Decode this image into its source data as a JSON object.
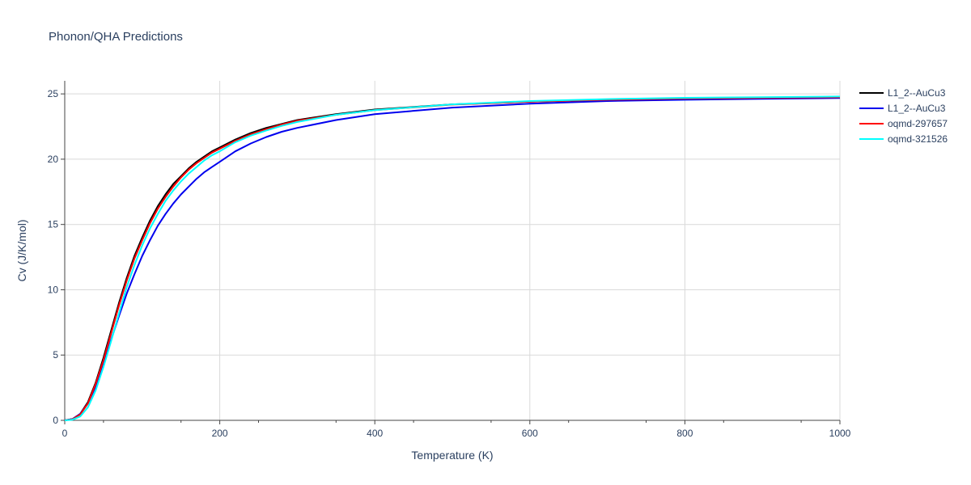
{
  "chart_data": {
    "type": "line",
    "title": "Phonon/QHA Predictions",
    "xlabel": "Temperature (K)",
    "ylabel": "Cv (J/K/mol)",
    "xlim": [
      0,
      1000
    ],
    "ylim": [
      0,
      26
    ],
    "x_ticks": [
      "0",
      "200",
      "400",
      "600",
      "800",
      "1000"
    ],
    "y_ticks": [
      "0",
      "5",
      "10",
      "15",
      "20",
      "25"
    ],
    "grid": true,
    "legend_position": "right",
    "series": [
      {
        "name": "L1_2--AuCu3",
        "color": "#000000",
        "x": [
          0,
          10,
          20,
          30,
          40,
          50,
          60,
          70,
          80,
          90,
          100,
          110,
          120,
          130,
          140,
          150,
          160,
          170,
          180,
          190,
          200,
          220,
          240,
          260,
          280,
          300,
          350,
          400,
          500,
          600,
          700,
          800,
          900,
          1000
        ],
        "y": [
          0,
          0.1,
          0.5,
          1.4,
          2.9,
          4.8,
          6.9,
          9.0,
          10.9,
          12.6,
          14.0,
          15.3,
          16.4,
          17.3,
          18.1,
          18.7,
          19.3,
          19.8,
          20.2,
          20.6,
          20.9,
          21.5,
          22.0,
          22.4,
          22.7,
          23.0,
          23.45,
          23.8,
          24.2,
          24.4,
          24.55,
          24.65,
          24.7,
          24.75
        ]
      },
      {
        "name": "L1_2--AuCu3",
        "color": "#0000ee",
        "x": [
          0,
          10,
          20,
          30,
          40,
          50,
          60,
          70,
          80,
          90,
          100,
          110,
          120,
          130,
          140,
          150,
          160,
          170,
          180,
          190,
          200,
          220,
          240,
          260,
          280,
          300,
          350,
          400,
          500,
          600,
          700,
          800,
          900,
          1000
        ],
        "y": [
          0,
          0.1,
          0.5,
          1.3,
          2.6,
          4.3,
          6.2,
          8.0,
          9.7,
          11.2,
          12.6,
          13.8,
          14.9,
          15.8,
          16.6,
          17.3,
          17.9,
          18.5,
          19.0,
          19.4,
          19.8,
          20.6,
          21.2,
          21.7,
          22.1,
          22.4,
          23.0,
          23.45,
          23.95,
          24.25,
          24.45,
          24.55,
          24.62,
          24.68
        ]
      },
      {
        "name": "oqmd-297657",
        "color": "#ff0000",
        "x": [
          0,
          10,
          20,
          30,
          40,
          50,
          60,
          70,
          80,
          90,
          100,
          110,
          120,
          130,
          140,
          150,
          160,
          170,
          180,
          190,
          200,
          220,
          240,
          260,
          280,
          300,
          350,
          400,
          500,
          600,
          700,
          800,
          900,
          1000
        ],
        "y": [
          0,
          0.08,
          0.45,
          1.3,
          2.8,
          4.6,
          6.7,
          8.8,
          10.7,
          12.4,
          13.8,
          15.1,
          16.2,
          17.1,
          17.9,
          18.6,
          19.2,
          19.7,
          20.1,
          20.5,
          20.8,
          21.4,
          21.9,
          22.3,
          22.65,
          22.95,
          23.4,
          23.75,
          24.18,
          24.4,
          24.55,
          24.65,
          24.7,
          24.75
        ]
      },
      {
        "name": "oqmd-321526",
        "color": "#00ffff",
        "x": [
          0,
          10,
          20,
          30,
          40,
          50,
          60,
          70,
          80,
          90,
          100,
          110,
          120,
          130,
          140,
          150,
          160,
          170,
          180,
          190,
          200,
          220,
          240,
          260,
          280,
          300,
          350,
          400,
          500,
          600,
          700,
          800,
          900,
          1000
        ],
        "y": [
          0,
          0.05,
          0.3,
          1.0,
          2.3,
          4.1,
          6.1,
          8.2,
          10.2,
          11.9,
          13.4,
          14.7,
          15.8,
          16.8,
          17.6,
          18.3,
          18.9,
          19.4,
          19.9,
          20.3,
          20.6,
          21.3,
          21.8,
          22.2,
          22.55,
          22.85,
          23.4,
          23.75,
          24.2,
          24.45,
          24.6,
          24.7,
          24.75,
          24.8
        ]
      }
    ]
  }
}
